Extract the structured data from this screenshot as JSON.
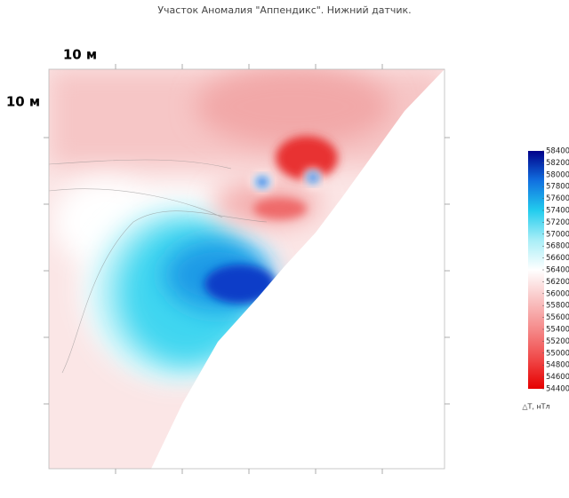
{
  "title": "Участок Аномалия \"Аппендикс\". Нижний датчик.",
  "scale_labels": {
    "top": "10 м",
    "left": "10 м"
  },
  "colorbar": {
    "label": "△T, нТл",
    "min": 54400,
    "max": 58400,
    "ticks": [
      58400,
      58200,
      58000,
      57800,
      57600,
      57400,
      57200,
      57000,
      56800,
      56600,
      56400,
      56200,
      56000,
      55800,
      55600,
      55400,
      55200,
      55000,
      54800,
      54600,
      54400
    ],
    "colors": [
      "#e60000",
      "#f04848",
      "#f58a8a",
      "#f9c4c4",
      "#ffffff",
      "#a8eef7",
      "#22ccee",
      "#1170e0",
      "#00008a"
    ]
  }
}
